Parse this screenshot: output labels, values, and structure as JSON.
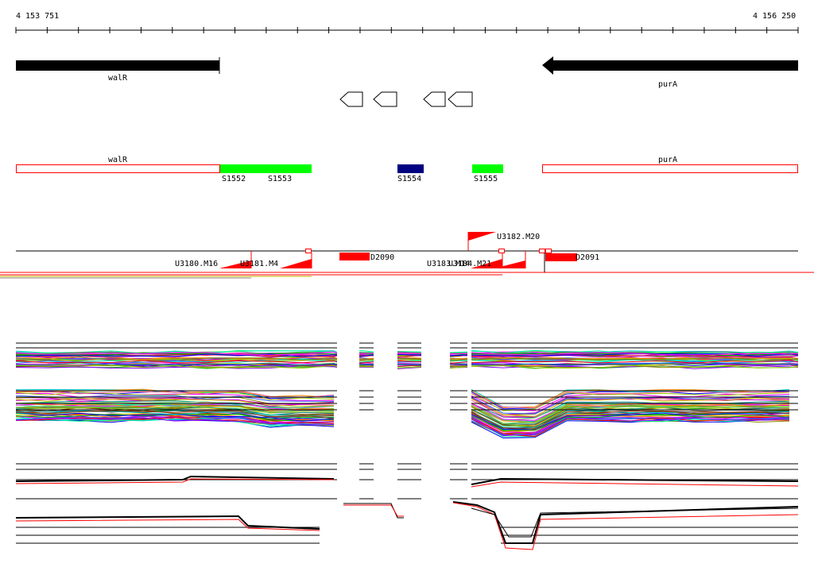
{
  "ruler": {
    "start_label": "4 153 751",
    "end_label": "4 156 250"
  },
  "genes_top": [
    {
      "name": "walR",
      "strand": "+"
    },
    {
      "name": "purA",
      "strand": "-"
    }
  ],
  "segments": [
    {
      "label": "walR",
      "color": "#ff0000",
      "style": "outline"
    },
    {
      "label": "S1552",
      "color": "#00ff00",
      "style": "filled"
    },
    {
      "label": "S1553",
      "color": "#00ff00",
      "style": "filled"
    },
    {
      "label": "S1554",
      "color": "#000080",
      "style": "filled"
    },
    {
      "label": "S1555",
      "color": "#00ff00",
      "style": "filled"
    },
    {
      "label": "purA",
      "color": "#ff0000",
      "style": "outline"
    }
  ],
  "features": [
    {
      "label": "U3180.M16"
    },
    {
      "label": "U3181.M4"
    },
    {
      "label": "D2090"
    },
    {
      "label": "U3183.M14"
    },
    {
      "label": "U3184.M21"
    },
    {
      "label": "U3182.M20"
    },
    {
      "label": "D2091"
    }
  ],
  "colors": {
    "feature": "#ff0000",
    "axis": "#000000",
    "segment_green": "#00ff00",
    "segment_navy": "#000080"
  }
}
